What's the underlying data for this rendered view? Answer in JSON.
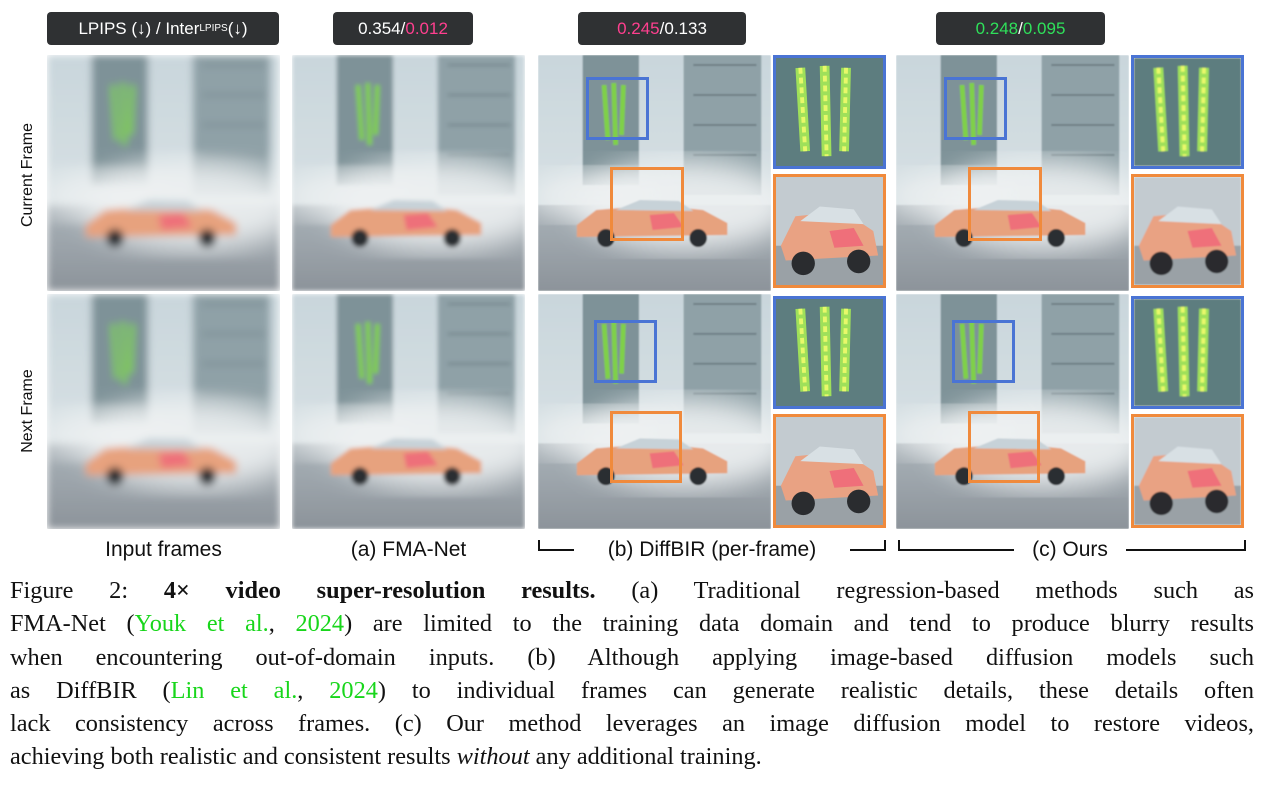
{
  "header": {
    "metric_prefix": "LPIPS (↓) / Inter",
    "metric_sub": "LPIPS",
    "metric_suffix": " (↓)",
    "fma_lpips": "0.354",
    "fma_inter": "0.012",
    "diffbir_lpips": "0.245",
    "diffbir_inter": "0.133",
    "ours_lpips": "0.248",
    "ours_inter": "0.095",
    "separator": " / "
  },
  "row_labels": {
    "current": "Current Frame",
    "next": "Next Frame"
  },
  "column_labels": {
    "input": "Input frames",
    "fma": "(a) FMA-Net",
    "diffbir": "(b) DiffBIR (per-frame)",
    "ours": "(c) Ours"
  },
  "colors": {
    "pink": "#ff3f8f",
    "green": "#2fe05a",
    "blue_box": "#4a74d4",
    "orange_box": "#f08a3c",
    "citation": "#18d61b"
  },
  "caption": {
    "fig": "Figure 2: ",
    "title": "4× video super-resolution results.",
    "l1_rest": " (a) Traditional regression-based methods such as",
    "l2_a": "FMA-Net (",
    "cite1_author": "Youk et al.",
    "cite1_sep": ", ",
    "cite1_year": "2024",
    "l2_b": ") are limited to the training data domain and tend to produce blurry results",
    "l3": "when encountering out-of-domain inputs. (b) Although applying image-based diffusion models such",
    "l4_a": "as DiffBIR (",
    "cite2_author": "Lin et al.",
    "cite2_sep": ", ",
    "cite2_year": "2024",
    "l4_b": ") to individual frames can generate realistic details, these details often",
    "l5": "lack consistency across frames. (c) Our method leverages an image diffusion model to restore videos,",
    "l6_a": "achieving both realistic and consistent results ",
    "l6_em": "without",
    "l6_b": " any additional training."
  }
}
